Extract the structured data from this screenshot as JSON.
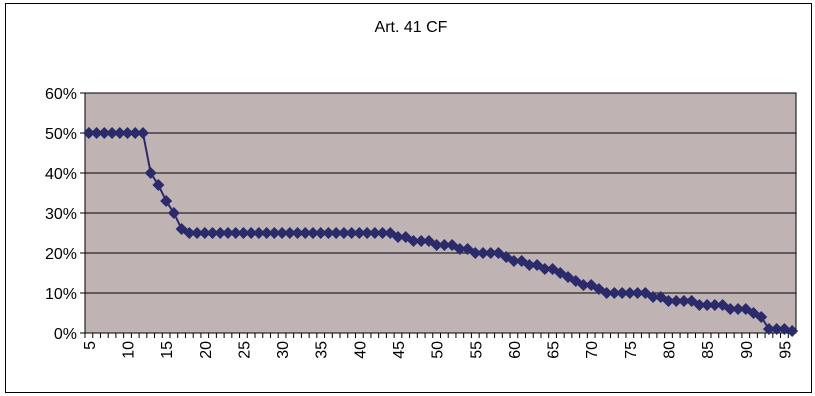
{
  "chart_data": {
    "type": "line",
    "title": "Art. 41 CF",
    "x": [
      5,
      6,
      7,
      8,
      9,
      10,
      11,
      12,
      13,
      14,
      15,
      16,
      17,
      18,
      19,
      20,
      21,
      22,
      23,
      24,
      25,
      26,
      27,
      28,
      29,
      30,
      31,
      32,
      33,
      34,
      35,
      36,
      37,
      38,
      39,
      40,
      41,
      42,
      43,
      44,
      45,
      46,
      47,
      48,
      49,
      50,
      51,
      52,
      53,
      54,
      55,
      56,
      57,
      58,
      59,
      60,
      61,
      62,
      63,
      64,
      65,
      66,
      67,
      68,
      69,
      70,
      71,
      72,
      73,
      74,
      75,
      76,
      77,
      78,
      79,
      80,
      81,
      82,
      83,
      84,
      85,
      86,
      87,
      88,
      89,
      90,
      91,
      92,
      93,
      94,
      95,
      96
    ],
    "values": [
      50,
      50,
      50,
      50,
      50,
      50,
      50,
      50,
      40,
      37,
      33,
      30,
      26,
      25,
      25,
      25,
      25,
      25,
      25,
      25,
      25,
      25,
      25,
      25,
      25,
      25,
      25,
      25,
      25,
      25,
      25,
      25,
      25,
      25,
      25,
      25,
      25,
      25,
      25,
      25,
      24,
      24,
      23,
      23,
      23,
      22,
      22,
      22,
      21,
      21,
      20,
      20,
      20,
      20,
      19,
      18,
      18,
      17,
      17,
      16,
      16,
      15,
      14,
      13,
      12,
      12,
      11,
      10,
      10,
      10,
      10,
      10,
      10,
      9,
      9,
      8,
      8,
      8,
      8,
      7,
      7,
      7,
      7,
      6,
      6,
      6,
      5,
      4,
      1,
      1,
      1,
      0.5
    ],
    "color": "#2b2b6b",
    "plot_background": "#bfb3b3",
    "xlim": [
      4.5,
      96.5
    ],
    "xticks": [
      5,
      10,
      15,
      20,
      25,
      30,
      35,
      40,
      45,
      50,
      55,
      60,
      65,
      70,
      75,
      80,
      85,
      90,
      95
    ],
    "ylim": [
      0,
      60
    ],
    "yticks": [
      {
        "value": 0,
        "label": "0%"
      },
      {
        "value": 10,
        "label": "10%"
      },
      {
        "value": 20,
        "label": "20%"
      },
      {
        "value": 30,
        "label": "30%"
      },
      {
        "value": 40,
        "label": "40%"
      },
      {
        "value": 50,
        "label": "50%"
      },
      {
        "value": 60,
        "label": "60%"
      }
    ],
    "grid": true
  }
}
